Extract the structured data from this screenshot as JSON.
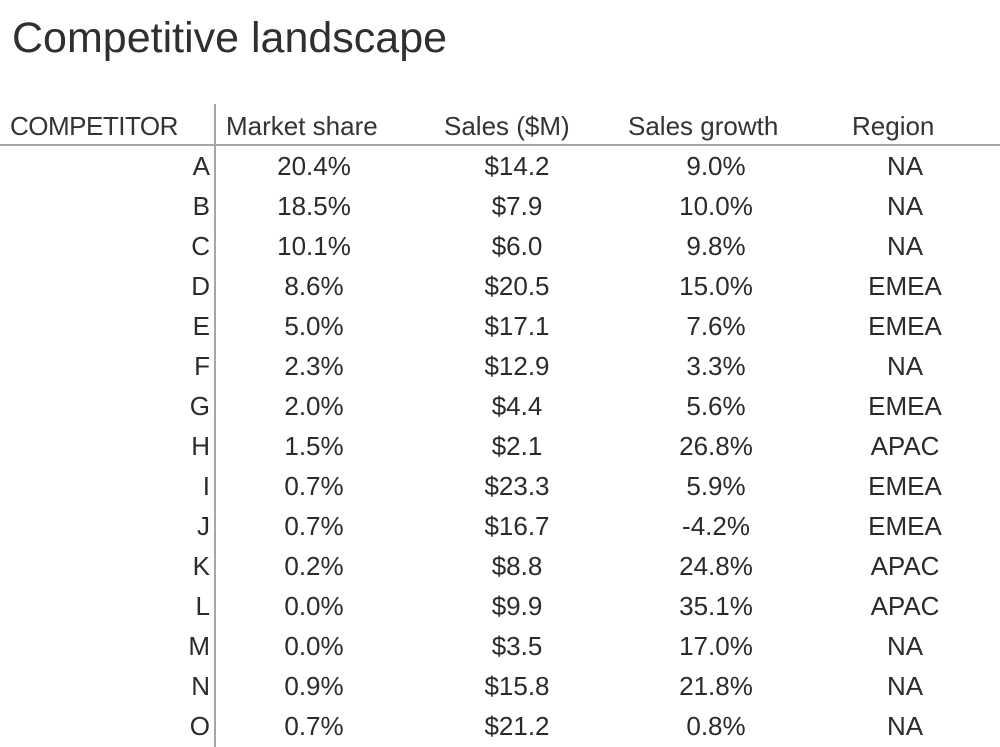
{
  "page": {
    "title": "Competitive landscape"
  },
  "chart_data": {
    "type": "table",
    "title": "Competitive landscape",
    "columns": [
      "COMPETITOR",
      "Market share",
      "Sales ($M)",
      "Sales growth",
      "Region"
    ],
    "rows": [
      [
        "A",
        "20.4%",
        "$14.2",
        "9.0%",
        "NA"
      ],
      [
        "B",
        "18.5%",
        "$7.9",
        "10.0%",
        "NA"
      ],
      [
        "C",
        "10.1%",
        "$6.0",
        "9.8%",
        "NA"
      ],
      [
        "D",
        "8.6%",
        "$20.5",
        "15.0%",
        "EMEA"
      ],
      [
        "E",
        "5.0%",
        "$17.1",
        "7.6%",
        "EMEA"
      ],
      [
        "F",
        "2.3%",
        "$12.9",
        "3.3%",
        "NA"
      ],
      [
        "G",
        "2.0%",
        "$4.4",
        "5.6%",
        "EMEA"
      ],
      [
        "H",
        "1.5%",
        "$2.1",
        "26.8%",
        "APAC"
      ],
      [
        "I",
        "0.7%",
        "$23.3",
        "5.9%",
        "EMEA"
      ],
      [
        "J",
        "0.7%",
        "$16.7",
        "-4.2%",
        "EMEA"
      ],
      [
        "K",
        "0.2%",
        "$8.8",
        "24.8%",
        "APAC"
      ],
      [
        "L",
        "0.0%",
        "$9.9",
        "35.1%",
        "APAC"
      ],
      [
        "M",
        "0.0%",
        "$3.5",
        "17.0%",
        "NA"
      ],
      [
        "N",
        "0.9%",
        "$15.8",
        "21.8%",
        "NA"
      ],
      [
        "O",
        "0.7%",
        "$21.2",
        "0.8%",
        "NA"
      ]
    ],
    "colors": {
      "text": "#2b2b2b",
      "rule": "#a6a6a6",
      "background": "#ffffff"
    }
  }
}
